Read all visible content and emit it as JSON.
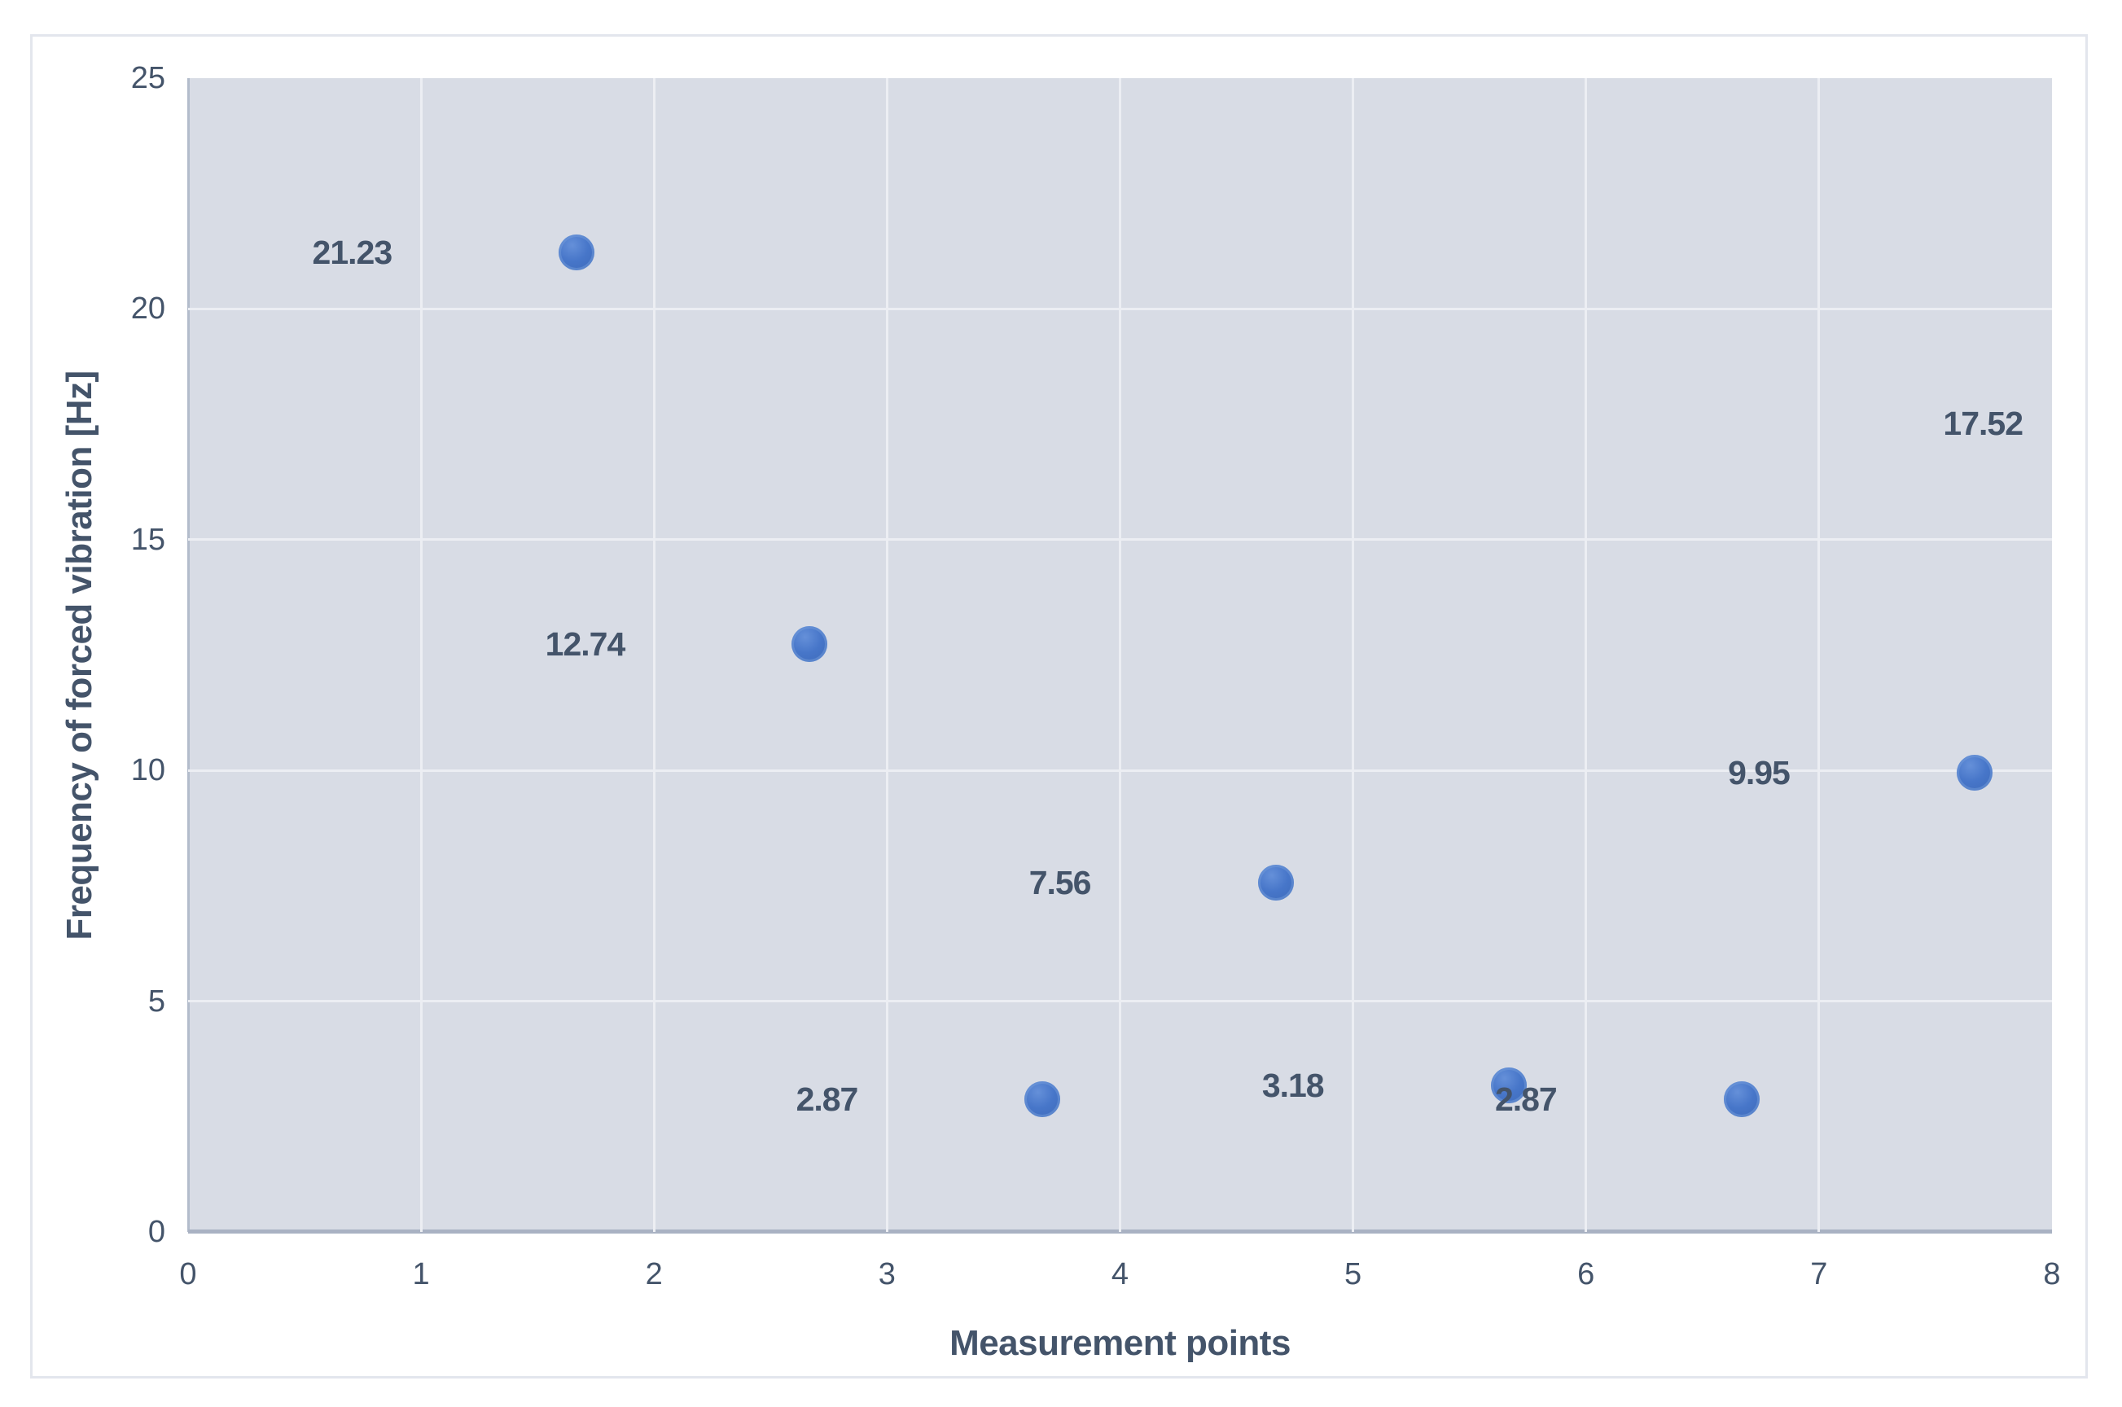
{
  "chart_data": {
    "type": "scatter",
    "title": "",
    "xlabel": "Measurement points",
    "ylabel": "Frequency of forced vibration [Hz]",
    "x": [
      1,
      2,
      3,
      4,
      5,
      6,
      7,
      8
    ],
    "y": [
      21.23,
      12.74,
      2.87,
      7.56,
      3.18,
      2.87,
      9.95,
      17.52
    ],
    "point_labels": [
      "21.23",
      "12.74",
      "2.87",
      "7.56",
      "3.18",
      "2.87",
      "9.95",
      "17.52"
    ],
    "xlim": [
      0,
      8
    ],
    "ylim": [
      0,
      25
    ],
    "x_ticks": [
      0,
      1,
      2,
      3,
      4,
      5,
      6,
      7,
      8
    ],
    "y_ticks": [
      0,
      5,
      10,
      15,
      20,
      25
    ],
    "grid": true,
    "legend": false,
    "colors": {
      "marker": "#4472C4",
      "marker_rim": "#5C86D2",
      "plot_background": "#D8DCE5",
      "gridline": "#ECEEF3",
      "axis_line": "#A9B2C3",
      "text": "#44546A",
      "frame_border": "#E3E6ED"
    }
  }
}
